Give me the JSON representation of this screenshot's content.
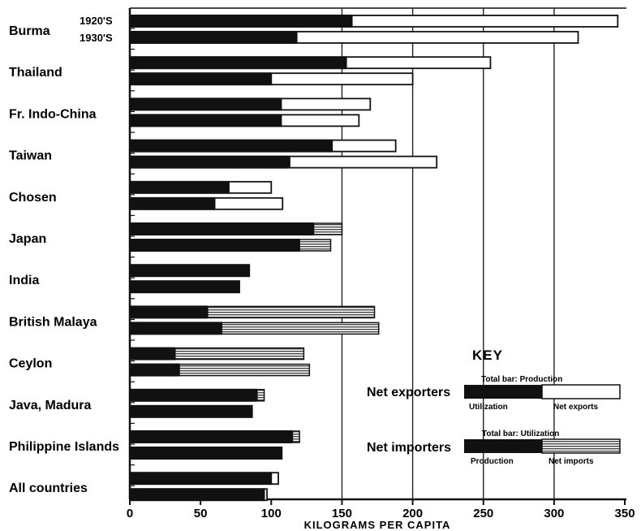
{
  "chart_data": {
    "type": "bar",
    "orientation": "horizontal",
    "xlabel": "KILOGRAMS PER CAPITA",
    "xlim": [
      0,
      350
    ],
    "xticks": [
      "0",
      "50",
      "100",
      "150",
      "200",
      "250",
      "300",
      "350"
    ],
    "decade_labels": [
      "1920'S",
      "1930'S"
    ],
    "categories": [
      "Burma",
      "Thailand",
      "Fr. Indo-China",
      "Taiwan",
      "Chosen",
      "Japan",
      "India",
      "British Malaya",
      "Ceylon",
      "Java, Madura",
      "Philippine Islands",
      "All countries"
    ],
    "series": [
      {
        "name": "1920'S",
        "bars": [
          {
            "kind": "exporter",
            "utilization": 157,
            "production": 345
          },
          {
            "kind": "exporter",
            "utilization": 153,
            "production": 255
          },
          {
            "kind": "exporter",
            "utilization": 107,
            "production": 170
          },
          {
            "kind": "exporter",
            "utilization": 143,
            "production": 188
          },
          {
            "kind": "exporter",
            "utilization": 70,
            "production": 100
          },
          {
            "kind": "importer",
            "production": 130,
            "utilization": 150
          },
          {
            "kind": "self",
            "production": 85,
            "utilization": 85
          },
          {
            "kind": "importer",
            "production": 55,
            "utilization": 173
          },
          {
            "kind": "importer",
            "production": 32,
            "utilization": 123
          },
          {
            "kind": "importer",
            "production": 90,
            "utilization": 95
          },
          {
            "kind": "importer",
            "production": 115,
            "utilization": 120
          },
          {
            "kind": "exporter",
            "utilization": 100,
            "production": 105
          }
        ]
      },
      {
        "name": "1930'S",
        "bars": [
          {
            "kind": "exporter",
            "utilization": 118,
            "production": 317
          },
          {
            "kind": "exporter",
            "utilization": 100,
            "production": 200
          },
          {
            "kind": "exporter",
            "utilization": 107,
            "production": 162
          },
          {
            "kind": "exporter",
            "utilization": 113,
            "production": 217
          },
          {
            "kind": "exporter",
            "utilization": 60,
            "production": 108
          },
          {
            "kind": "importer",
            "production": 120,
            "utilization": 142
          },
          {
            "kind": "self",
            "production": 78,
            "utilization": 78
          },
          {
            "kind": "importer",
            "production": 65,
            "utilization": 176
          },
          {
            "kind": "importer",
            "production": 35,
            "utilization": 127
          },
          {
            "kind": "self",
            "production": 87,
            "utilization": 87
          },
          {
            "kind": "self",
            "production": 108,
            "utilization": 108
          },
          {
            "kind": "exporter",
            "utilization": 95,
            "production": 97
          }
        ]
      }
    ],
    "key": {
      "title": "KEY",
      "exporters": {
        "row_label": "Net exporters",
        "total_label": "Total bar: Production",
        "left_label": "Utilization",
        "right_label": "Net exports"
      },
      "importers": {
        "row_label": "Net importers",
        "total_label": "Total bar: Utilization",
        "left_label": "Production",
        "right_label": "Net imports"
      }
    },
    "colors": {
      "solid": "#111111",
      "open": "#ffffff",
      "hatch": "#6a6a6a"
    },
    "grid": "vertical lines at 150, 200, 250, 300"
  }
}
